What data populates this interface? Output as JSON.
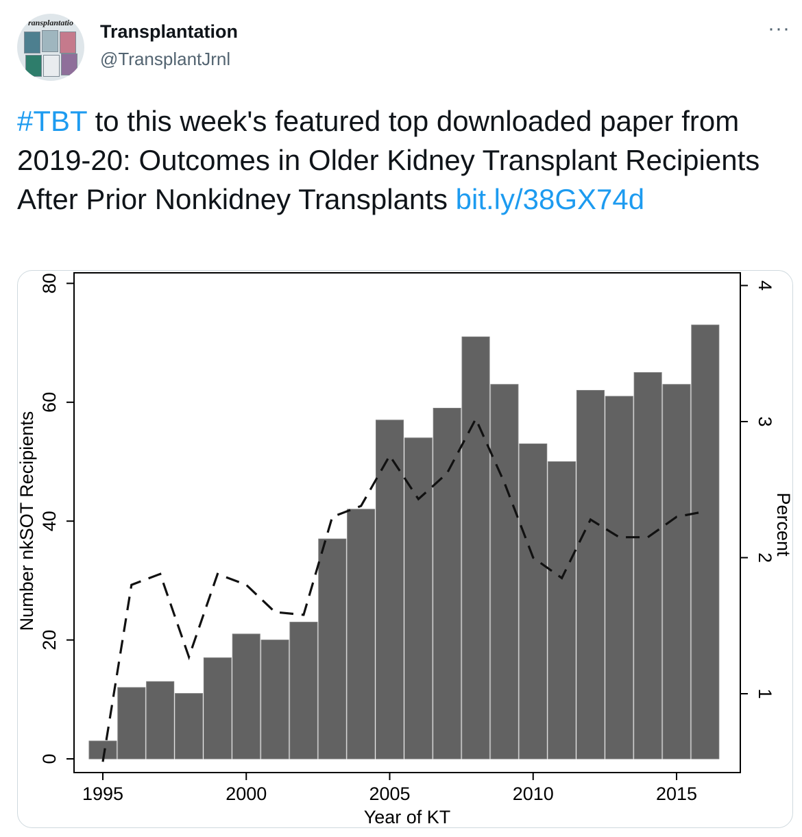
{
  "tweet": {
    "author_name": "Transplantation",
    "handle": "@TransplantJrnl",
    "more_label": "···",
    "avatar_text": "ransplantatio",
    "text_parts": {
      "hashtag": "#TBT",
      "body": " to this week's featured top downloaded paper from 2019-20: Outcomes in Older Kidney Transplant Recipients After Prior Nonkidney Transplants ",
      "link": "bit.ly/38GX74d"
    },
    "colors": {
      "link": "#1d9bf0",
      "secondary_text": "#536471",
      "text": "#0f1419"
    }
  },
  "chart_data": {
    "type": "bar",
    "xlabel": "Year of KT",
    "ylabel": "Number nkSOT Recipients",
    "y2label": "Percent",
    "categories": [
      1995,
      1996,
      1997,
      1998,
      1999,
      2000,
      2001,
      2002,
      2003,
      2004,
      2005,
      2006,
      2007,
      2008,
      2009,
      2010,
      2011,
      2012,
      2013,
      2014,
      2015,
      2016
    ],
    "series": [
      {
        "axis": "left",
        "render": "bar",
        "values": [
          3,
          12,
          13,
          11,
          17,
          21,
          20,
          23,
          37,
          42,
          57,
          54,
          59,
          71,
          63,
          53,
          50,
          62,
          61,
          65,
          63,
          73
        ]
      },
      {
        "axis": "right",
        "render": "dashed-line",
        "values": [
          0.5,
          1.8,
          1.88,
          1.27,
          1.88,
          1.8,
          1.6,
          1.58,
          2.3,
          2.38,
          2.75,
          2.43,
          2.62,
          3.02,
          2.55,
          2.0,
          1.85,
          2.28,
          2.15,
          2.15,
          2.3,
          2.34
        ]
      }
    ],
    "xticks": [
      1995,
      2000,
      2005,
      2010,
      2015
    ],
    "yticks": [
      0,
      20,
      40,
      60,
      80
    ],
    "y2ticks": [
      1,
      2,
      3,
      4
    ],
    "ylim": [
      0,
      80
    ],
    "y2lim": [
      0.5,
      4
    ],
    "xlim": [
      1994.4,
      2016.5
    ],
    "bar_color": "#626262",
    "grid": false,
    "legend": "none"
  }
}
